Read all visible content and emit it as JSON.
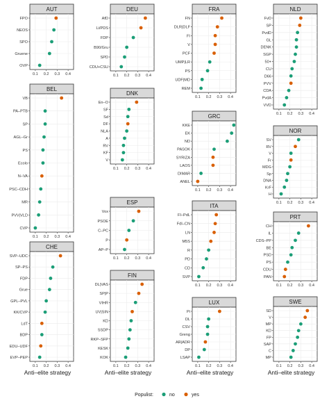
{
  "chart_data": {
    "type": "scatter",
    "facet_variable": "country",
    "x_axis": {
      "ticks": [
        0.1,
        0.2,
        0.3,
        0.4
      ],
      "tick_labels": [
        "0.1",
        "0.2",
        "0.3",
        "0.4"
      ],
      "range": [
        0.05,
        0.45
      ]
    },
    "colors": {
      "no": "#1b9e77",
      "yes": "#d95f02"
    },
    "legend": {
      "title": "Populist:",
      "items": [
        "no",
        "yes"
      ],
      "placement": "bottom"
    },
    "panels": [
      {
        "country": "AUT",
        "xlabel": "",
        "points": [
          {
            "party": "FPO",
            "value": 0.29,
            "populist": "yes"
          },
          {
            "party": "NEOS",
            "value": 0.27,
            "populist": "no"
          },
          {
            "party": "SPO",
            "value": 0.25,
            "populist": "no"
          },
          {
            "party": "Gruene",
            "value": 0.23,
            "populist": "no"
          },
          {
            "party": "OVP",
            "value": 0.14,
            "populist": "no"
          }
        ]
      },
      {
        "country": "DEU",
        "xlabel": "",
        "points": [
          {
            "party": "AfD",
            "value": 0.37,
            "populist": "yes"
          },
          {
            "party": "Li/PDS",
            "value": 0.33,
            "populist": "yes"
          },
          {
            "party": "FDP",
            "value": 0.26,
            "populist": "no"
          },
          {
            "party": "B90/Gru",
            "value": 0.2,
            "populist": "no"
          },
          {
            "party": "SPD",
            "value": 0.18,
            "populist": "no"
          },
          {
            "party": "CDU+CSU",
            "value": 0.15,
            "populist": "no"
          }
        ]
      },
      {
        "country": "FRA",
        "xlabel": "",
        "points": [
          {
            "party": "FN",
            "value": 0.32,
            "populist": "yes"
          },
          {
            "party": "DLR|DLF",
            "value": 0.28,
            "populist": "yes"
          },
          {
            "party": "FI",
            "value": 0.26,
            "populist": "yes"
          },
          {
            "party": "V",
            "value": 0.26,
            "populist": "yes"
          },
          {
            "party": "PCF",
            "value": 0.25,
            "populist": "yes"
          },
          {
            "party": "UMP|LR",
            "value": 0.21,
            "populist": "no"
          },
          {
            "party": "PS",
            "value": 0.19,
            "populist": "no"
          },
          {
            "party": "UDF|MD",
            "value": 0.14,
            "populist": "no"
          },
          {
            "party": "REM",
            "value": 0.13,
            "populist": "no"
          }
        ]
      },
      {
        "country": "NLD",
        "xlabel": "",
        "points": [
          {
            "party": "FvD",
            "value": 0.3,
            "populist": "yes"
          },
          {
            "party": "SP",
            "value": 0.29,
            "populist": "yes"
          },
          {
            "party": "PvdD",
            "value": 0.27,
            "populist": "no"
          },
          {
            "party": "GL",
            "value": 0.26,
            "populist": "no"
          },
          {
            "party": "DENK",
            "value": 0.26,
            "populist": "no"
          },
          {
            "party": "SGP",
            "value": 0.25,
            "populist": "no"
          },
          {
            "party": "50+",
            "value": 0.24,
            "populist": "no"
          },
          {
            "party": "CU",
            "value": 0.22,
            "populist": "no"
          },
          {
            "party": "D66",
            "value": 0.21,
            "populist": "no"
          },
          {
            "party": "PVV",
            "value": 0.21,
            "populist": "yes"
          },
          {
            "party": "CDA",
            "value": 0.19,
            "populist": "no"
          },
          {
            "party": "PvdA",
            "value": 0.17,
            "populist": "no"
          },
          {
            "party": "VVD",
            "value": 0.15,
            "populist": "no"
          }
        ]
      },
      {
        "country": "BEL",
        "xlabel": "",
        "points": [
          {
            "party": "VB",
            "value": 0.34,
            "populist": "yes"
          },
          {
            "party": "PA–PTB",
            "value": 0.19,
            "populist": "no"
          },
          {
            "party": "SP",
            "value": 0.19,
            "populist": "no"
          },
          {
            "party": "AGL–Gr",
            "value": 0.18,
            "populist": "no"
          },
          {
            "party": "PS",
            "value": 0.17,
            "populist": "no"
          },
          {
            "party": "Ecolo",
            "value": 0.17,
            "populist": "no"
          },
          {
            "party": "N–VA",
            "value": 0.16,
            "populist": "yes"
          },
          {
            "party": "PSC–CDH",
            "value": 0.15,
            "populist": "no"
          },
          {
            "party": "MR",
            "value": 0.14,
            "populist": "no"
          },
          {
            "party": "PVV|VLD",
            "value": 0.13,
            "populist": "no"
          },
          {
            "party": "CVP",
            "value": 0.1,
            "populist": "no"
          }
        ]
      },
      {
        "country": "DNK",
        "xlabel": "",
        "points": [
          {
            "party": "En–O",
            "value": 0.29,
            "populist": "yes"
          },
          {
            "party": "SF",
            "value": 0.22,
            "populist": "no"
          },
          {
            "party": "Sd",
            "value": 0.21,
            "populist": "no"
          },
          {
            "party": "DF",
            "value": 0.21,
            "populist": "yes"
          },
          {
            "party": "NLA",
            "value": 0.2,
            "populist": "no"
          },
          {
            "party": "A",
            "value": 0.18,
            "populist": "no"
          },
          {
            "party": "RV",
            "value": 0.17,
            "populist": "no"
          },
          {
            "party": "KF",
            "value": 0.17,
            "populist": "no"
          },
          {
            "party": "V",
            "value": 0.16,
            "populist": "no"
          }
        ]
      },
      {
        "country": "GRC",
        "xlabel": "",
        "points": [
          {
            "party": "KKE",
            "value": 0.43,
            "populist": "no"
          },
          {
            "party": "EK",
            "value": 0.41,
            "populist": "no"
          },
          {
            "party": "ND",
            "value": 0.37,
            "populist": "no"
          },
          {
            "party": "PASOK",
            "value": 0.25,
            "populist": "no"
          },
          {
            "party": "SYRIZA",
            "value": 0.24,
            "populist": "yes"
          },
          {
            "party": "LAOS",
            "value": 0.24,
            "populist": "yes"
          },
          {
            "party": "DIMAR",
            "value": 0.13,
            "populist": "no"
          },
          {
            "party": "ANEL",
            "value": 0.1,
            "populist": "yes"
          }
        ]
      },
      {
        "country": "NOR",
        "xlabel": "",
        "points": [
          {
            "party": "SV",
            "value": 0.28,
            "populist": "no"
          },
          {
            "party": "RV",
            "value": 0.25,
            "populist": "yes"
          },
          {
            "party": "V",
            "value": 0.21,
            "populist": "no"
          },
          {
            "party": "Fr",
            "value": 0.21,
            "populist": "yes"
          },
          {
            "party": "MDG",
            "value": 0.2,
            "populist": "no"
          },
          {
            "party": "Sp",
            "value": 0.18,
            "populist": "no"
          },
          {
            "party": "DNA",
            "value": 0.17,
            "populist": "no"
          },
          {
            "party": "KrF",
            "value": 0.15,
            "populist": "no"
          },
          {
            "party": "H",
            "value": 0.12,
            "populist": "no"
          }
        ]
      },
      {
        "country": "ESP",
        "xlabel": "",
        "points": [
          {
            "party": "Vox",
            "value": 0.31,
            "populist": "yes"
          },
          {
            "party": "PSOE",
            "value": 0.26,
            "populist": "no"
          },
          {
            "party": "C–PC",
            "value": 0.22,
            "populist": "no"
          },
          {
            "party": "P",
            "value": 0.2,
            "populist": "yes"
          },
          {
            "party": "AP–P",
            "value": 0.18,
            "populist": "no"
          }
        ]
      },
      {
        "country": "ITA",
        "xlabel": "",
        "points": [
          {
            "party": "FI–PdL",
            "value": 0.27,
            "populist": "yes"
          },
          {
            "party": "FdI–CN",
            "value": 0.26,
            "populist": "yes"
          },
          {
            "party": "LN",
            "value": 0.25,
            "populist": "yes"
          },
          {
            "party": "M5S",
            "value": 0.22,
            "populist": "yes"
          },
          {
            "party": "R",
            "value": 0.2,
            "populist": "no"
          },
          {
            "party": "PD",
            "value": 0.18,
            "populist": "no"
          },
          {
            "party": "CD",
            "value": 0.15,
            "populist": "no"
          },
          {
            "party": "SVP",
            "value": 0.11,
            "populist": "no"
          }
        ]
      },
      {
        "country": "PRT",
        "xlabel": "",
        "points": [
          {
            "party": "CH",
            "value": 0.37,
            "populist": "yes"
          },
          {
            "party": "IL",
            "value": 0.28,
            "populist": "no"
          },
          {
            "party": "CDS–PP",
            "value": 0.25,
            "populist": "no"
          },
          {
            "party": "BE",
            "value": 0.22,
            "populist": "no"
          },
          {
            "party": "PSD",
            "value": 0.21,
            "populist": "no"
          },
          {
            "party": "PS",
            "value": 0.18,
            "populist": "no"
          },
          {
            "party": "CDU",
            "value": 0.16,
            "populist": "yes"
          },
          {
            "party": "PAN",
            "value": 0.15,
            "populist": "yes"
          }
        ]
      },
      {
        "country": "CHE",
        "xlabel": "Anti–elite strategy",
        "points": [
          {
            "party": "SVP–UDC",
            "value": 0.33,
            "populist": "yes"
          },
          {
            "party": "SP–PS",
            "value": 0.26,
            "populist": "no"
          },
          {
            "party": "FDP",
            "value": 0.24,
            "populist": "no"
          },
          {
            "party": "Grue",
            "value": 0.23,
            "populist": "no"
          },
          {
            "party": "GPL–PVL",
            "value": 0.2,
            "populist": "no"
          },
          {
            "party": "KK/CVP",
            "value": 0.19,
            "populist": "no"
          },
          {
            "party": "LdT",
            "value": 0.16,
            "populist": "yes"
          },
          {
            "party": "BDP",
            "value": 0.16,
            "populist": "no"
          },
          {
            "party": "EDU–UDF",
            "value": 0.15,
            "populist": "yes"
          },
          {
            "party": "EVP–PEP",
            "value": 0.14,
            "populist": "no"
          }
        ]
      },
      {
        "country": "FIN",
        "xlabel": "Anti–elite strategy",
        "points": [
          {
            "party": "DL|VAS",
            "value": 0.34,
            "populist": "yes"
          },
          {
            "party": "SP|P",
            "value": 0.31,
            "populist": "yes"
          },
          {
            "party": "VIHR",
            "value": 0.28,
            "populist": "no"
          },
          {
            "party": "UV|SIN",
            "value": 0.25,
            "populist": "yes"
          },
          {
            "party": "KD",
            "value": 0.24,
            "populist": "no"
          },
          {
            "party": "SSDP",
            "value": 0.23,
            "populist": "no"
          },
          {
            "party": "RKP–SFP",
            "value": 0.22,
            "populist": "no"
          },
          {
            "party": "KESK",
            "value": 0.21,
            "populist": "no"
          },
          {
            "party": "KOK",
            "value": 0.19,
            "populist": "no"
          }
        ]
      },
      {
        "country": "LUX",
        "xlabel": "Anti–elite strategy",
        "points": [
          {
            "party": "Pi",
            "value": 0.3,
            "populist": "yes"
          },
          {
            "party": "DL",
            "value": 0.2,
            "populist": "no"
          },
          {
            "party": "CSV",
            "value": 0.19,
            "populist": "no"
          },
          {
            "party": "Greng",
            "value": 0.19,
            "populist": "no"
          },
          {
            "party": "AR|ADR",
            "value": 0.17,
            "populist": "yes"
          },
          {
            "party": "DP",
            "value": 0.16,
            "populist": "no"
          },
          {
            "party": "LSAP",
            "value": 0.11,
            "populist": "no"
          }
        ]
      },
      {
        "country": "SWE",
        "xlabel": "Anti–elite strategy",
        "points": [
          {
            "party": "SD",
            "value": 0.36,
            "populist": "yes"
          },
          {
            "party": "V",
            "value": 0.34,
            "populist": "yes"
          },
          {
            "party": "MP",
            "value": 0.3,
            "populist": "no"
          },
          {
            "party": "KD",
            "value": 0.28,
            "populist": "no"
          },
          {
            "party": "FP",
            "value": 0.27,
            "populist": "no"
          },
          {
            "party": "SAP",
            "value": 0.25,
            "populist": "no"
          },
          {
            "party": "C",
            "value": 0.23,
            "populist": "no"
          },
          {
            "party": "MP",
            "value": 0.21,
            "populist": "no"
          }
        ]
      }
    ]
  }
}
